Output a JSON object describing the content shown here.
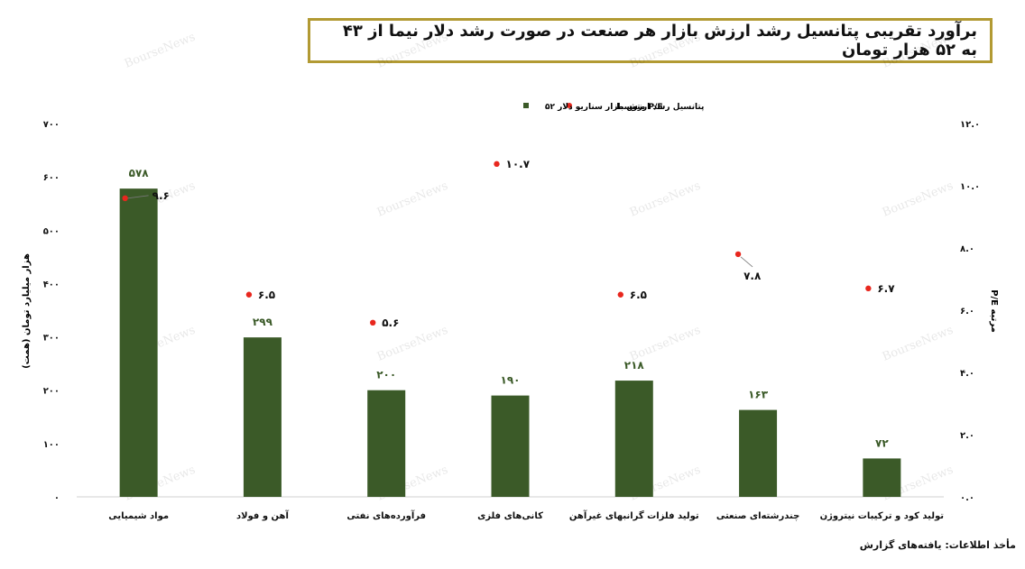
{
  "title": "برآورد تقریبی پتانسیل رشد ارزش بازار هر صنعت در صورت رشد دلار نیما از ۴۳ به ۵۲ هزار تومان",
  "source": "مأخذ اطلاعات: یافته‌های گزارش",
  "watermark": "BourseNews",
  "colors": {
    "bar": "#3b5a28",
    "pe_dot": "#e8271e",
    "border": "#b29a33"
  },
  "chart_data": {
    "type": "bar",
    "categories": [
      "مواد شیمیایی",
      "آهن و فولاد",
      "فرآورده‌های نفتی",
      "کانی‌های فلزی",
      "تولید فلزات گرانبهای غیرآهن",
      "چندرشته‌ای صنعتی",
      "تولید کود و ترکیبات نیتروژن"
    ],
    "series": [
      {
        "name": "پتانسیل رشد ارزش بازار سناریو دلار ۵۲",
        "type": "bar",
        "axis": "left",
        "values": [
          578,
          299,
          200,
          190,
          218,
          163,
          72
        ],
        "labels": [
          "۵۷۸",
          "۲۹۹",
          "۲۰۰",
          "۱۹۰",
          "۲۱۸",
          "۱۶۳",
          "۷۲"
        ]
      },
      {
        "name": "P/E متوسط",
        "type": "scatter",
        "axis": "right",
        "values": [
          9.6,
          6.5,
          5.6,
          10.7,
          6.5,
          7.8,
          6.7
        ],
        "labels": [
          "۹.۶",
          "۶.۵",
          "۵.۶",
          "۱۰.۷",
          "۶.۵",
          "۷.۸",
          "۶.۷"
        ]
      }
    ],
    "ylabel_left": "هزار میلیارد تومان (همت)",
    "ylabel_right": "مرتبه P/E",
    "ylim_left": [
      0,
      700
    ],
    "ylim_right": [
      0,
      12
    ],
    "yticks_left": [
      "۰",
      "۱۰۰",
      "۲۰۰",
      "۳۰۰",
      "۴۰۰",
      "۵۰۰",
      "۶۰۰",
      "۷۰۰"
    ],
    "yticks_right": [
      "۰.۰",
      "۲.۰",
      "۴.۰",
      "۶.۰",
      "۸.۰",
      "۱۰.۰",
      "۱۲.۰"
    ],
    "grid": false,
    "legend_position": "top"
  }
}
